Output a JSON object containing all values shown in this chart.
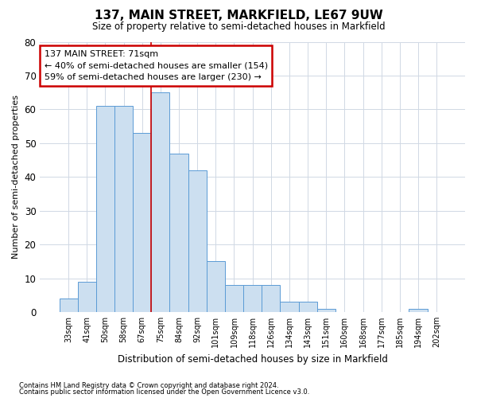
{
  "title": "137, MAIN STREET, MARKFIELD, LE67 9UW",
  "subtitle": "Size of property relative to semi-detached houses in Markfield",
  "xlabel": "Distribution of semi-detached houses by size in Markfield",
  "ylabel": "Number of semi-detached properties",
  "categories": [
    "33sqm",
    "41sqm",
    "50sqm",
    "58sqm",
    "67sqm",
    "75sqm",
    "84sqm",
    "92sqm",
    "101sqm",
    "109sqm",
    "118sqm",
    "126sqm",
    "134sqm",
    "143sqm",
    "151sqm",
    "160sqm",
    "168sqm",
    "177sqm",
    "185sqm",
    "194sqm",
    "202sqm"
  ],
  "values": [
    4,
    9,
    61,
    61,
    53,
    65,
    47,
    42,
    15,
    8,
    8,
    8,
    3,
    3,
    1,
    0,
    0,
    0,
    0,
    1,
    0
  ],
  "bar_color": "#ccdff0",
  "bar_edge_color": "#5b9bd5",
  "background_color": "#ffffff",
  "grid_color": "#d0d8e4",
  "annotation_line1": "137 MAIN STREET: 71sqm",
  "annotation_line2": "← 40% of semi-detached houses are smaller (154)",
  "annotation_line3": "59% of semi-detached houses are larger (230) →",
  "annotation_box_color": "#ffffff",
  "annotation_box_edge_color": "#cc0000",
  "redline_bar_index": 5,
  "ylim": [
    0,
    80
  ],
  "yticks": [
    0,
    10,
    20,
    30,
    40,
    50,
    60,
    70,
    80
  ],
  "footnote1": "Contains HM Land Registry data © Crown copyright and database right 2024.",
  "footnote2": "Contains public sector information licensed under the Open Government Licence v3.0."
}
